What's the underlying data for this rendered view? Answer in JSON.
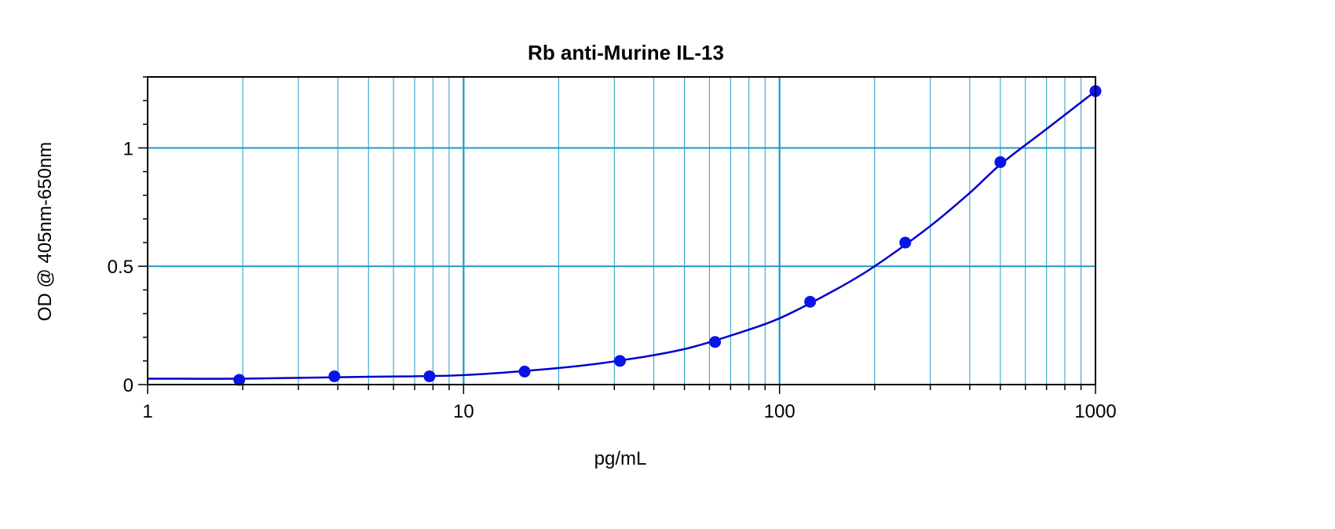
{
  "chart_data": {
    "type": "scatter",
    "title": "Rb anti-Murine IL-13",
    "xlabel": "pg/mL",
    "ylabel": "OD @ 405nm-650nm",
    "x_scale": "log",
    "xlim": [
      1,
      1000
    ],
    "ylim": [
      0,
      1.3
    ],
    "x_ticks": [
      1,
      10,
      100,
      1000
    ],
    "x_tick_labels": [
      "1",
      "10",
      "100",
      "1000"
    ],
    "y_ticks": [
      0,
      0.5,
      1
    ],
    "y_tick_labels": [
      "0",
      "0.5",
      "1"
    ],
    "grid": true,
    "legend": "none",
    "colors": {
      "grid": "#1e9bc9",
      "series": "#0000cc",
      "marker": "#0a14e6",
      "frame": "#000000"
    },
    "series": [
      {
        "x": [
          1.95,
          3.9,
          7.8,
          15.6,
          31.25,
          62.5,
          125,
          250,
          500,
          1000
        ],
        "y": [
          0.02,
          0.035,
          0.035,
          0.055,
          0.1,
          0.18,
          0.35,
          0.6,
          0.94,
          1.24
        ]
      }
    ],
    "fit_curve": {
      "x": [
        1,
        2,
        5,
        10,
        20,
        30,
        50,
        75,
        100,
        150,
        200,
        300,
        400,
        500,
        700,
        1000
      ],
      "y": [
        0.025,
        0.025,
        0.033,
        0.04,
        0.07,
        0.098,
        0.15,
        0.22,
        0.28,
        0.4,
        0.5,
        0.67,
        0.81,
        0.93,
        1.08,
        1.24
      ]
    }
  }
}
